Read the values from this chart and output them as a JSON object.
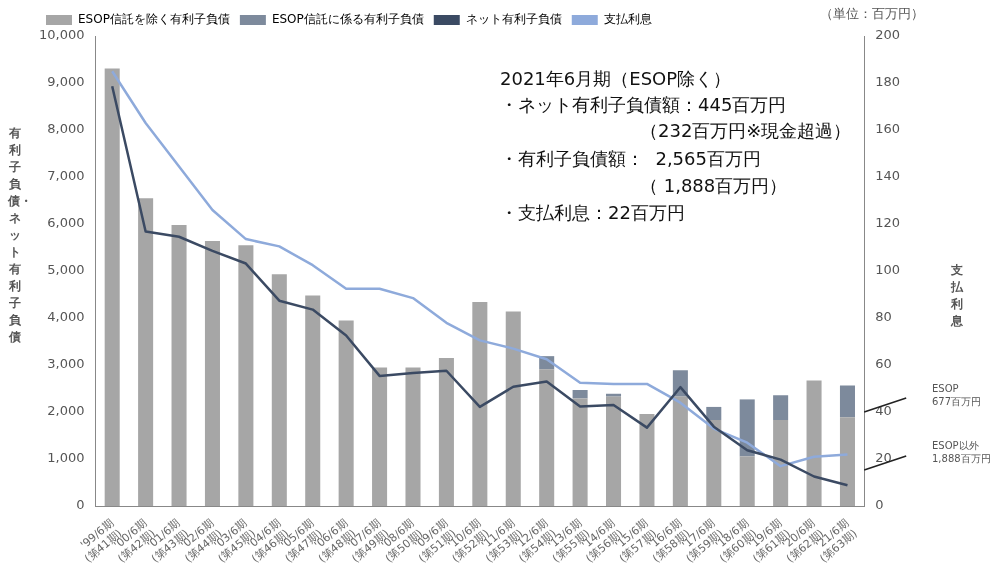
{
  "chart_data": {
    "type": "bar",
    "stacked": true,
    "categories": [
      "'99/6期\n(第41期)",
      "'00/6期\n(第42期)",
      "'01/6期\n(第43期)",
      "'02/6期\n(第44期)",
      "'03/6期\n(第45期)",
      "'04/6期\n(第46期)",
      "'05/6期\n(第47期)",
      "'06/6期\n(第48期)",
      "'07/6期\n(第49期)",
      "'08/6期\n(第50期)",
      "'09/6期\n(第51期)",
      "'10/6期\n(第52期)",
      "'11/6期\n(第53期)",
      "'12/6期\n(第54期)",
      "'13/6期\n(第55期)",
      "'14/6期\n(第56期)",
      "'15/6期\n(第57期)",
      "'16/6期\n(第58期)",
      "'17/6期\n(第59期)",
      "'18/6期\n(第60期)",
      "'19/6期\n(第61期)",
      "'20/6期\n(第62期)",
      "'21/6期\n(第63期)"
    ],
    "series": [
      {
        "name": "ESOP信託を除く有利子負債",
        "color": "#a6a6a6",
        "values": [
          9310,
          6550,
          5980,
          5640,
          5550,
          4930,
          4480,
          3950,
          2950,
          2950,
          3150,
          4340,
          4140,
          2910,
          2290,
          2330,
          1960,
          2330,
          1830,
          1060,
          1830,
          2670,
          1888
        ]
      },
      {
        "name": "ESOP信託に係る有利子負債",
        "color": "#7d8a9c",
        "values": [
          null,
          null,
          null,
          null,
          null,
          null,
          null,
          null,
          null,
          null,
          null,
          null,
          null,
          280,
          180,
          60,
          null,
          560,
          280,
          1210,
          530,
          null,
          677
        ]
      },
      {
        "name": "ネット有利子負債",
        "type": "line",
        "color": "#3b4a63",
        "values": [
          8930,
          5840,
          5730,
          5430,
          5160,
          4370,
          4180,
          3630,
          2770,
          2830,
          2880,
          2110,
          2540,
          2650,
          2120,
          2150,
          1670,
          2530,
          1690,
          1190,
          990,
          630,
          445
        ]
      },
      {
        "name": "支払利息",
        "type": "line",
        "axis": "y2",
        "color": "#8eaadb",
        "values": [
          185,
          163,
          144.5,
          126,
          113.6,
          110.5,
          102.5,
          92.5,
          92.5,
          88.5,
          78,
          70.5,
          67,
          62.5,
          52.5,
          52,
          52,
          44,
          33,
          27,
          17,
          21,
          22
        ]
      }
    ],
    "ylabel": "有利子負債・ネット有利子負債",
    "y2label": "支払利息",
    "ylim": [
      0,
      10000
    ],
    "yticks": [
      0,
      {
        "value": 1000,
        "label": "1,000"
      },
      {
        "value": 2000,
        "label": "2,000"
      },
      {
        "value": 3000,
        "label": "3,000"
      },
      {
        "value": 4000,
        "label": "4,000"
      },
      {
        "value": 5000,
        "label": "5,000"
      },
      {
        "value": 6000,
        "label": "6,000"
      },
      {
        "value": 7000,
        "label": "7,000"
      },
      {
        "value": 8000,
        "label": "8,000"
      },
      {
        "value": 9000,
        "label": "9,000"
      },
      {
        "value": 10000,
        "label": "10,000"
      }
    ],
    "y2lim": [
      0,
      200
    ],
    "y2ticks": [
      0,
      20,
      40,
      60,
      80,
      100,
      120,
      140,
      160,
      180,
      200
    ],
    "grid": false,
    "legend": "top",
    "marker": "none",
    "line_style": "solid",
    "annotations": [
      "（単位：百万円）",
      "2021年6月期（ESOP除く）",
      "・ネット有利子負債額：445百万円",
      "（232百万円※現金超過）",
      "・有利子負債額：  2,565百万円",
      "（ 1,888百万円）",
      "・支払利息：22百万円",
      "ESOP\n677百万円",
      "ESOP以外\n1,888百万円"
    ]
  }
}
